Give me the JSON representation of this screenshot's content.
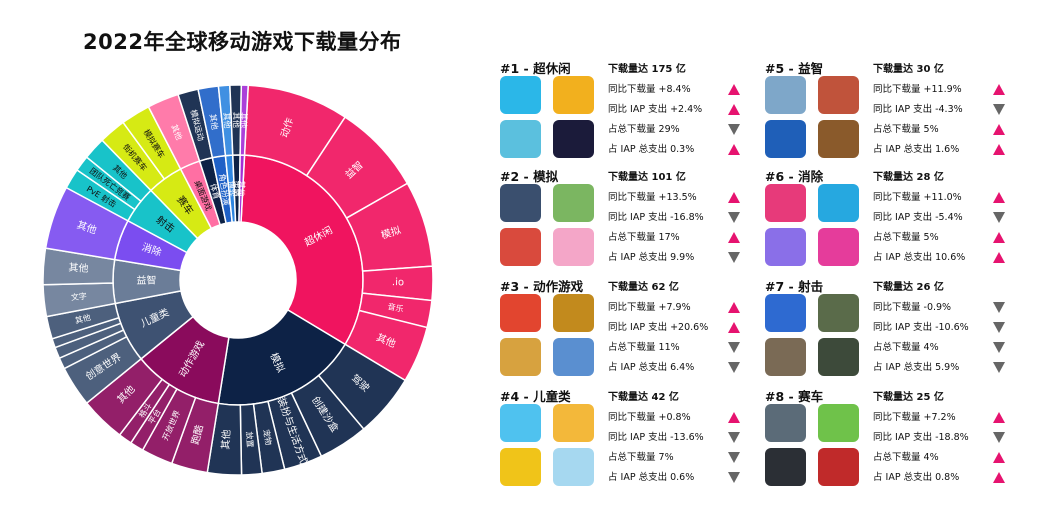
{
  "title": "2022年全球移动游戏下载量分布",
  "chart_data": {
    "type": "sunburst",
    "title": "2022年全球移动游戏下载量分布",
    "inner": [
      {
        "name": "超休闲",
        "value": 175,
        "color": "#f0145f"
      },
      {
        "name": "模拟",
        "value": 101,
        "color": "#0d2246"
      },
      {
        "name": "动作游戏",
        "value": 62,
        "color": "#8a0b5c"
      },
      {
        "name": "儿童类",
        "value": 42,
        "color": "#3e5272"
      },
      {
        "name": "益智",
        "value": 30,
        "color": "#6b7d98"
      },
      {
        "name": "消除",
        "value": 28,
        "color": "#7b4df0"
      },
      {
        "name": "射击",
        "value": 26,
        "color": "#18c3c9"
      },
      {
        "name": "赛车",
        "value": 25,
        "color": "#d6ea14"
      },
      {
        "name": "桌面游戏",
        "value": 14,
        "color": "#ff6fa3"
      },
      {
        "name": "体育",
        "value": 9,
        "color": "#0d2246"
      },
      {
        "name": "角色扮演",
        "value": 9,
        "color": "#1f61c7"
      },
      {
        "name": "博弈",
        "value": 5,
        "color": "#2f86e0"
      },
      {
        "name": "策略",
        "value": 5,
        "color": "#0d2246"
      },
      {
        "name": "其他",
        "value": 3,
        "color": "#a42fd6"
      }
    ],
    "outer": [
      {
        "name": "动作",
        "parent": "超休闲",
        "value": 45
      },
      {
        "name": "益智",
        "parent": "超休闲",
        "value": 40
      },
      {
        "name": "模拟",
        "parent": "超休闲",
        "value": 38
      },
      {
        "name": ".io",
        "parent": "超休闲",
        "value": 15
      },
      {
        "name": "音乐",
        "parent": "超休闲",
        "value": 12
      },
      {
        "name": "其他",
        "parent": "超休闲",
        "value": 25
      },
      {
        "name": "驾驶",
        "parent": "模拟",
        "value": 28
      },
      {
        "name": "创建沙盒",
        "parent": "模拟",
        "value": 22
      },
      {
        "name": "装扮与生活方式",
        "parent": "模拟",
        "value": 17
      },
      {
        "name": "宠物",
        "parent": "模拟",
        "value": 10
      },
      {
        "name": "放置",
        "parent": "模拟",
        "value": 9
      },
      {
        "name": "其他",
        "parent": "模拟",
        "value": 15
      },
      {
        "name": "跑酷",
        "parent": "动作游戏",
        "value": 16
      },
      {
        "name": "开放世界",
        "parent": "动作游戏",
        "value": 14
      },
      {
        "name": "平台",
        "parent": "动作游戏",
        "value": 6
      },
      {
        "name": "格斗",
        "parent": "动作游戏",
        "value": 6
      },
      {
        "name": "其他",
        "parent": "动作游戏",
        "value": 20
      },
      {
        "name": "创意世界",
        "parent": "儿童类",
        "value": 18
      },
      {
        "name": "",
        "parent": "儿童类",
        "value": 5
      },
      {
        "name": "",
        "parent": "儿童类",
        "value": 5
      },
      {
        "name": "",
        "parent": "儿童类",
        "value": 4
      },
      {
        "name": "其他",
        "parent": "儿童类",
        "value": 10
      },
      {
        "name": "文字",
        "parent": "益智",
        "value": 14
      },
      {
        "name": "其他",
        "parent": "益智",
        "value": 16
      },
      {
        "name": "其他",
        "parent": "消除",
        "value": 28
      },
      {
        "name": "PvE 射击",
        "parent": "射击",
        "value": 9
      },
      {
        "name": "团队死亡竞赛",
        "parent": "射击",
        "value": 7
      },
      {
        "name": "其他",
        "parent": "射击",
        "value": 10
      },
      {
        "name": "街机赛车",
        "parent": "赛车",
        "value": 12
      },
      {
        "name": "模拟赛车",
        "parent": "赛车",
        "value": 13
      },
      {
        "name": "其他",
        "parent": "桌面游戏",
        "value": 14
      },
      {
        "name": "模拟运动",
        "parent": "体育",
        "value": 9
      },
      {
        "name": "其他",
        "parent": "角色扮演",
        "value": 9
      },
      {
        "name": "其他",
        "parent": "博弈",
        "value": 5
      },
      {
        "name": "其他",
        "parent": "策略",
        "value": 5
      },
      {
        "name": "其他",
        "parent": "其他",
        "value": 3
      }
    ]
  },
  "categories": [
    {
      "title": "#1 - 超休闲",
      "icon_colors": [
        "#2bb7e8",
        "#f2b01e",
        "#5bc0de",
        "#1b1b3a"
      ],
      "stats": [
        {
          "text": "下载量达 175 亿",
          "trend": ""
        },
        {
          "text": "同比下载量 +8.4%",
          "trend": "up"
        },
        {
          "text": "同比 IAP 支出 +2.4%",
          "trend": "up"
        },
        {
          "text": "占总下载量 29%",
          "trend": "down"
        },
        {
          "text": "占 IAP 总支出 0.3%",
          "trend": "up"
        }
      ]
    },
    {
      "title": "#2 - 模拟",
      "icon_colors": [
        "#3a4f6e",
        "#7bb661",
        "#d94a3d",
        "#f4a6c8"
      ],
      "stats": [
        {
          "text": "下载量达 101 亿",
          "trend": ""
        },
        {
          "text": "同比下载量 +13.5%",
          "trend": "up"
        },
        {
          "text": "同比 IAP 支出 -16.8%",
          "trend": "down"
        },
        {
          "text": "占总下载量 17%",
          "trend": "up"
        },
        {
          "text": "占 IAP 总支出 9.9%",
          "trend": "down"
        }
      ]
    },
    {
      "title": "#3 - 动作游戏",
      "icon_colors": [
        "#e2452f",
        "#c28a1d",
        "#d7a23f",
        "#5a8fd0"
      ],
      "stats": [
        {
          "text": "下载量达 62 亿",
          "trend": ""
        },
        {
          "text": "同比下载量 +7.9%",
          "trend": "up"
        },
        {
          "text": "同比 IAP 支出 +20.6%",
          "trend": "up"
        },
        {
          "text": "占总下载量 11%",
          "trend": "down"
        },
        {
          "text": "占 IAP 总支出 6.4%",
          "trend": "down"
        }
      ]
    },
    {
      "title": "#4 - 儿童类",
      "icon_colors": [
        "#4fc2ef",
        "#f3b83a",
        "#f0c419",
        "#a6d8f0"
      ],
      "stats": [
        {
          "text": "下载量达 42 亿",
          "trend": ""
        },
        {
          "text": "同比下载量 +0.8%",
          "trend": "up"
        },
        {
          "text": "同比 IAP 支出 -13.6%",
          "trend": "down"
        },
        {
          "text": "占总下载量 7%",
          "trend": "down"
        },
        {
          "text": "占 IAP 总支出 0.6%",
          "trend": "down"
        }
      ]
    },
    {
      "title": "#5 - 益智",
      "icon_colors": [
        "#7ea7c9",
        "#c0533b",
        "#1f5fb8",
        "#8a5a2b"
      ],
      "stats": [
        {
          "text": "下载量达 30 亿",
          "trend": ""
        },
        {
          "text": "同比下载量 +11.9%",
          "trend": "up"
        },
        {
          "text": "同比 IAP 支出 -4.3%",
          "trend": "down"
        },
        {
          "text": "占总下载量 5%",
          "trend": "up"
        },
        {
          "text": "占 IAP 总支出 1.6%",
          "trend": "up"
        }
      ]
    },
    {
      "title": "#6 - 消除",
      "icon_colors": [
        "#e73a7a",
        "#26a8e0",
        "#8a6fe8",
        "#e53c9b"
      ],
      "stats": [
        {
          "text": "下载量达 28 亿",
          "trend": ""
        },
        {
          "text": "同比下载量 +11.0%",
          "trend": "up"
        },
        {
          "text": "同比 IAP 支出 -5.4%",
          "trend": "down"
        },
        {
          "text": "占总下载量 5%",
          "trend": "up"
        },
        {
          "text": "占 IAP 总支出 10.6%",
          "trend": "up"
        }
      ]
    },
    {
      "title": "#7 - 射击",
      "icon_colors": [
        "#2e6ad1",
        "#5a6b4a",
        "#7a6a55",
        "#3d4a3a"
      ],
      "stats": [
        {
          "text": "下载量达 26 亿",
          "trend": ""
        },
        {
          "text": "同比下载量 -0.9%",
          "trend": "down"
        },
        {
          "text": "同比 IAP 支出 -10.6%",
          "trend": "down"
        },
        {
          "text": "占总下载量 4%",
          "trend": "down"
        },
        {
          "text": "占 IAP 总支出 5.9%",
          "trend": "down"
        }
      ]
    },
    {
      "title": "#8 - 赛车",
      "icon_colors": [
        "#5b6b78",
        "#6fc24a",
        "#2b2f35",
        "#c02a2a"
      ],
      "stats": [
        {
          "text": "下载量达 25 亿",
          "trend": ""
        },
        {
          "text": "同比下载量 +7.2%",
          "trend": "up"
        },
        {
          "text": "同比 IAP 支出 -18.8%",
          "trend": "down"
        },
        {
          "text": "占总下载量 4%",
          "trend": "up"
        },
        {
          "text": "占 IAP 总支出 0.8%",
          "trend": "up"
        }
      ]
    }
  ]
}
